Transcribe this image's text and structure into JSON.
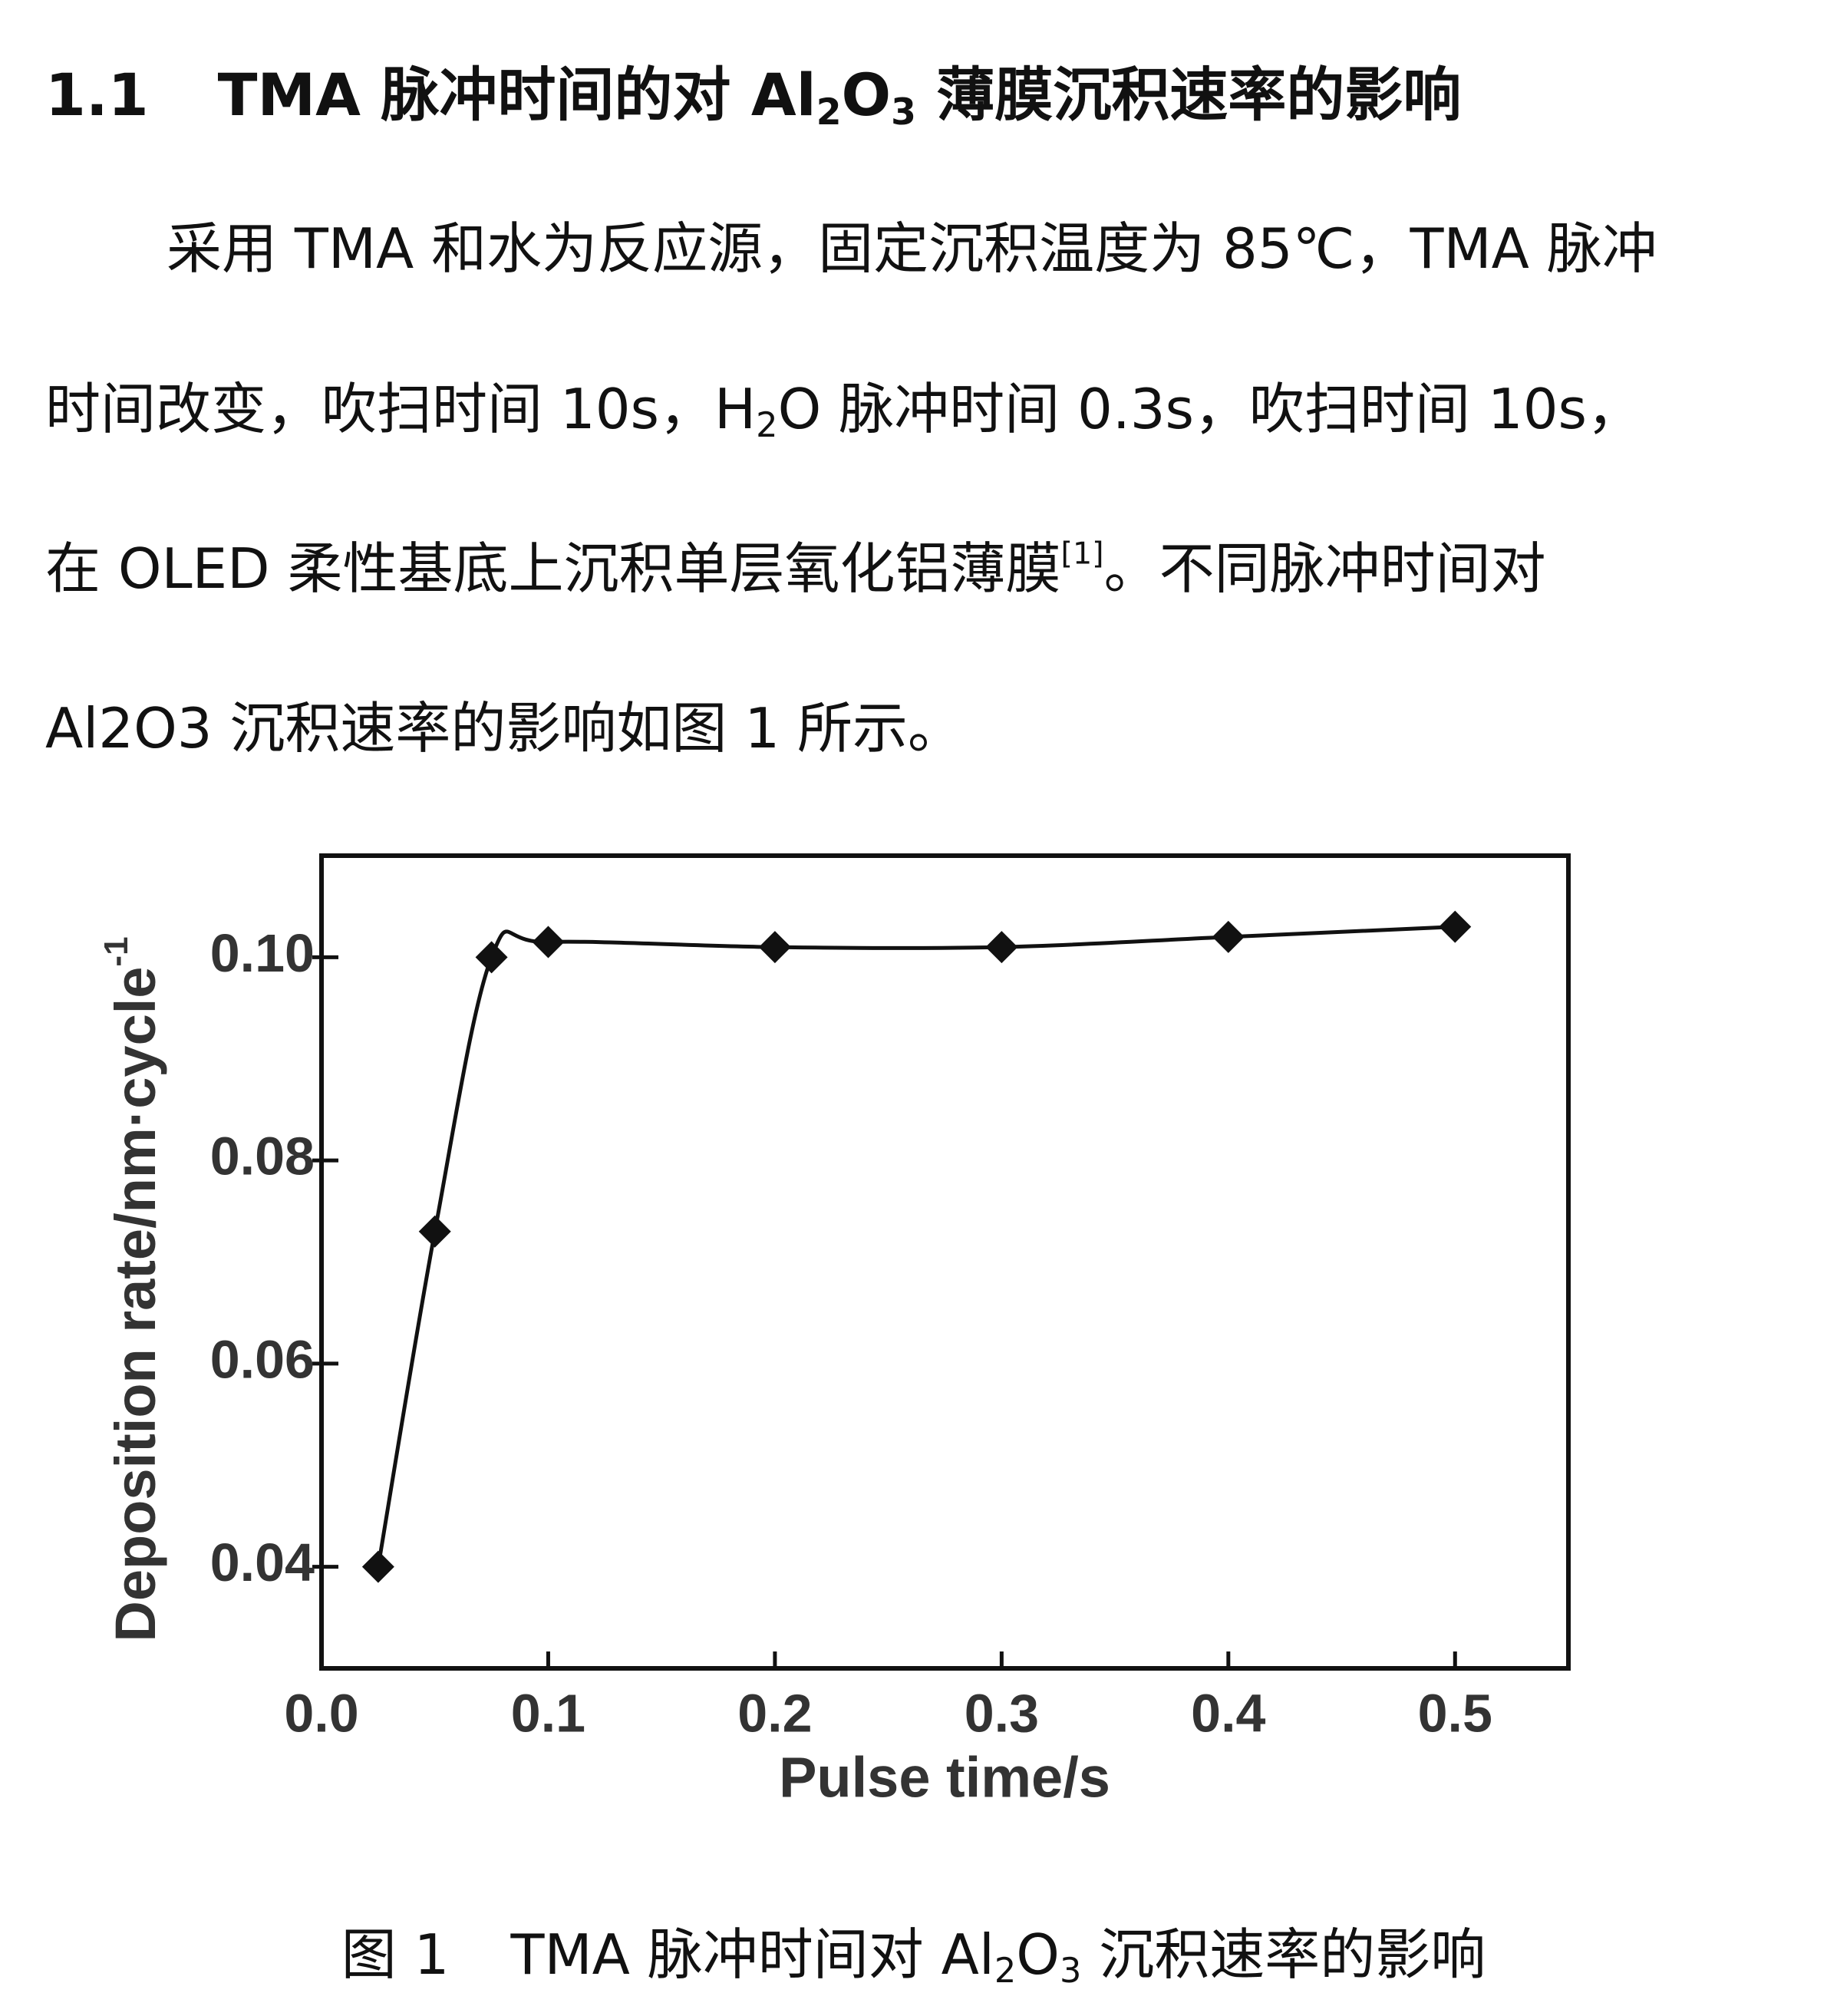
{
  "heading": {
    "number": "1.1",
    "parts": [
      "TMA 脉冲时间的对 Al",
      "2",
      "O",
      "3",
      " 薄膜沉积速率的影响"
    ]
  },
  "paragraph": {
    "lines": [
      [
        "采用 TMA 和水为反应源，固定沉积温度为 85℃，TMA 脉冲"
      ],
      [
        "时间改变，吹扫时间 10s，H",
        "2",
        "O 脉冲时间 0.3s，吹扫时间 10s，"
      ],
      [
        "在 OLED 柔性基底上沉积单层氧化铝薄膜",
        "[1]",
        "。不同脉冲时间对"
      ],
      [
        "Al2O3 沉积速率的影响如图 1 所示。"
      ]
    ]
  },
  "chart_data": {
    "type": "line",
    "xlabel": "Pulse time/s",
    "ylabel": "Deposition rate/nm·cycle",
    "ylabel_sup": "-1",
    "x": [
      0.025,
      0.05,
      0.075,
      0.1,
      0.2,
      0.3,
      0.4,
      0.5
    ],
    "values": [
      0.04,
      0.073,
      0.1,
      0.1015,
      0.101,
      0.101,
      0.102,
      0.103
    ],
    "color": "#111111",
    "xlim": [
      0,
      0.55
    ],
    "xticks": [
      {
        "value": 0,
        "label": "0.0"
      },
      0.1,
      0.2,
      0.3,
      0.4,
      0.5
    ],
    "ylim": [
      0.03,
      0.11
    ],
    "yticks": [
      0.04,
      0.06,
      0.08,
      {
        "value": 0.1,
        "label": "0.10"
      }
    ]
  },
  "caption": {
    "parts": [
      "图 1",
      "TMA 脉冲时间对 Al",
      "2",
      "O",
      "3",
      " 沉积速率的影响"
    ]
  }
}
